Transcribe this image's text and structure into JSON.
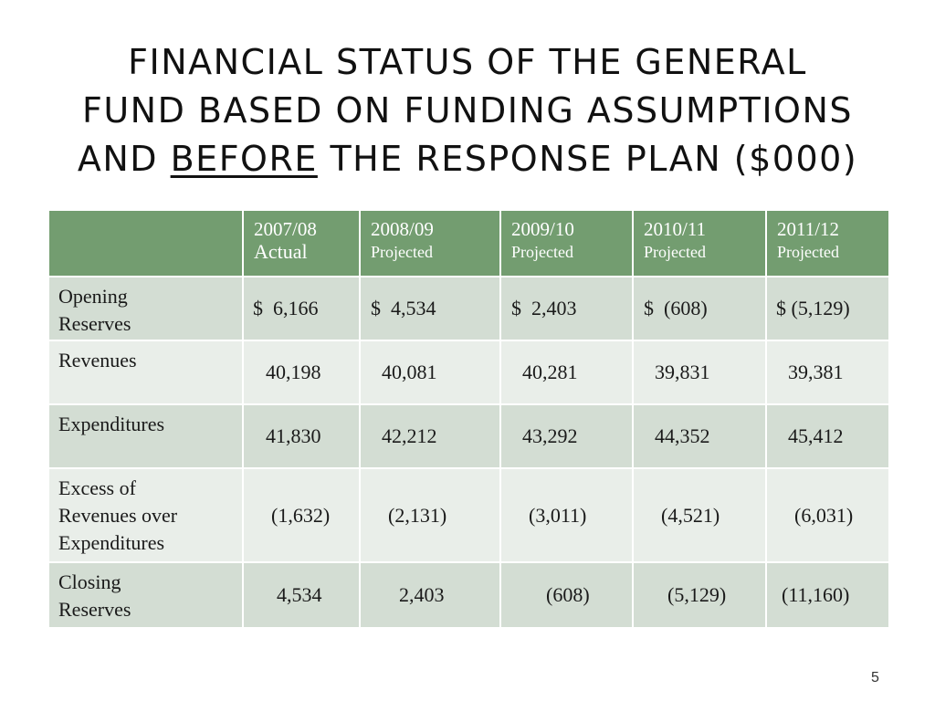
{
  "slide": {
    "title_lines": [
      "FINANCIAL STATUS OF THE GENERAL",
      "FUND BASED ON FUNDING ASSUMPTIONS"
    ],
    "title_line3": {
      "prefix": "AND ",
      "underlined": "BEFORE",
      "suffix": " THE RESPONSE PLAN ($000)"
    },
    "page_number": "5"
  },
  "table": {
    "columns": [
      {
        "year": "2007/08",
        "status": "Actual"
      },
      {
        "year": "2008/09",
        "status": "Projected"
      },
      {
        "year": "2009/10",
        "status": "Projected"
      },
      {
        "year": "2010/11",
        "status": "Projected"
      },
      {
        "year": "2011/12",
        "status": "Projected"
      }
    ],
    "rows": [
      {
        "label": "Opening\nReserves",
        "values": [
          "$  6,166",
          "$  4,534",
          "$  2,403",
          "$  (608)",
          "$ (5,129)"
        ]
      },
      {
        "label": "Revenues",
        "values": [
          "40,198",
          "40,081",
          "40,281",
          "39,831",
          "39,381"
        ]
      },
      {
        "label": "Expenditures",
        "values": [
          "41,830",
          "42,212",
          "43,292",
          "44,352",
          "45,412"
        ]
      },
      {
        "label": "Excess of\nRevenues over\nExpenditures",
        "values": [
          "(1,632)",
          "(2,131)",
          "(3,011)",
          "(4,521)",
          "(6,031)"
        ]
      },
      {
        "label": "Closing\nReserves",
        "values": [
          "4,534",
          "2,403",
          "(608)",
          "(5,129)",
          "(11,160)"
        ]
      }
    ]
  }
}
